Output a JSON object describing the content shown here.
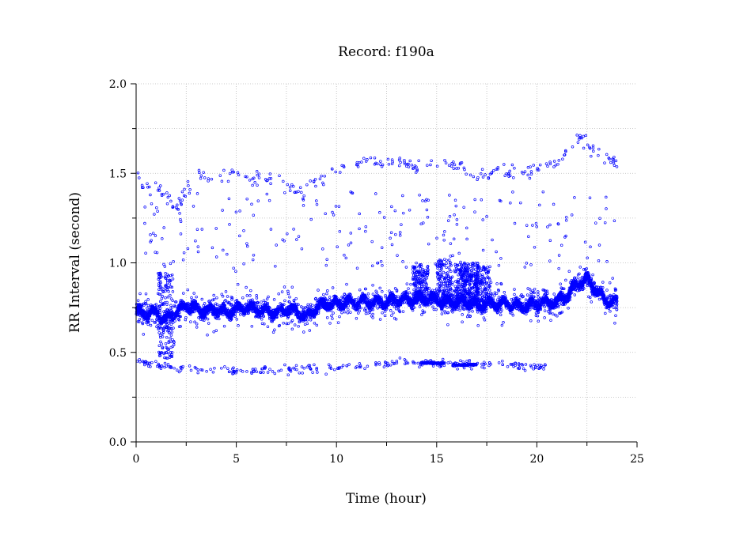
{
  "chart_data": {
    "type": "scatter",
    "title": "Record:  f190a",
    "xlabel": "Time (hour)",
    "ylabel": "RR Interval (second)",
    "xlim": [
      0,
      25
    ],
    "ylim": [
      0,
      2.0
    ],
    "xticks": [
      "0",
      "5",
      "10",
      "15",
      "20",
      "25"
    ],
    "yticks": [
      "0.0",
      "0.5",
      "1.0",
      "1.5",
      "2.0"
    ],
    "grid": true,
    "marker_color": "#0000ff",
    "series": [
      {
        "baseline_trend": [
          [
            0.0,
            0.73
          ],
          [
            0.5,
            0.72
          ],
          [
            1.0,
            0.72
          ],
          [
            1.5,
            0.68
          ],
          [
            2.0,
            0.73
          ],
          [
            2.5,
            0.76
          ],
          [
            3.0,
            0.74
          ],
          [
            3.5,
            0.73
          ],
          [
            4.0,
            0.74
          ],
          [
            4.5,
            0.72
          ],
          [
            5.0,
            0.74
          ],
          [
            5.5,
            0.75
          ],
          [
            6.0,
            0.74
          ],
          [
            6.5,
            0.73
          ],
          [
            7.0,
            0.72
          ],
          [
            7.5,
            0.74
          ],
          [
            8.0,
            0.73
          ],
          [
            8.5,
            0.7
          ],
          [
            9.0,
            0.75
          ],
          [
            9.5,
            0.77
          ],
          [
            10.0,
            0.77
          ],
          [
            10.5,
            0.78
          ],
          [
            11.0,
            0.78
          ],
          [
            11.5,
            0.78
          ],
          [
            12.0,
            0.78
          ],
          [
            12.5,
            0.78
          ],
          [
            13.0,
            0.79
          ],
          [
            13.5,
            0.79
          ],
          [
            14.0,
            0.8
          ],
          [
            14.5,
            0.8
          ],
          [
            15.0,
            0.79
          ],
          [
            15.5,
            0.78
          ],
          [
            16.0,
            0.78
          ],
          [
            16.5,
            0.78
          ],
          [
            17.0,
            0.76
          ],
          [
            17.5,
            0.77
          ],
          [
            18.0,
            0.77
          ],
          [
            18.5,
            0.77
          ],
          [
            19.0,
            0.76
          ],
          [
            19.5,
            0.76
          ],
          [
            20.0,
            0.77
          ],
          [
            20.5,
            0.78
          ],
          [
            21.0,
            0.78
          ],
          [
            21.5,
            0.82
          ],
          [
            22.0,
            0.88
          ],
          [
            22.5,
            0.91
          ],
          [
            23.0,
            0.84
          ],
          [
            23.5,
            0.78
          ],
          [
            24.0,
            0.78
          ]
        ],
        "upper_cluster_trend": [
          [
            0.0,
            1.45
          ],
          [
            1.0,
            1.42
          ],
          [
            2.0,
            1.3
          ],
          [
            3.0,
            1.5
          ],
          [
            4.0,
            1.45
          ],
          [
            5.0,
            1.5
          ],
          [
            6.0,
            1.47
          ],
          [
            7.0,
            1.5
          ],
          [
            8.0,
            1.4
          ],
          [
            9.0,
            1.45
          ],
          [
            10.0,
            1.52
          ],
          [
            11.0,
            1.55
          ],
          [
            12.0,
            1.56
          ],
          [
            13.0,
            1.55
          ],
          [
            14.0,
            1.55
          ],
          [
            15.0,
            1.55
          ],
          [
            16.0,
            1.55
          ],
          [
            17.0,
            1.48
          ],
          [
            18.0,
            1.52
          ],
          [
            19.0,
            1.5
          ],
          [
            20.0,
            1.52
          ],
          [
            21.0,
            1.55
          ],
          [
            22.0,
            1.7
          ],
          [
            23.0,
            1.62
          ],
          [
            24.0,
            1.55
          ]
        ],
        "lower_cluster_trend": [
          [
            0.0,
            0.45
          ],
          [
            1.5,
            0.42
          ],
          [
            3.0,
            0.41
          ],
          [
            5.0,
            0.4
          ],
          [
            7.0,
            0.4
          ],
          [
            9.0,
            0.41
          ],
          [
            11.0,
            0.42
          ],
          [
            13.0,
            0.45
          ],
          [
            14.5,
            0.44
          ],
          [
            16.5,
            0.43
          ],
          [
            18.0,
            0.43
          ],
          [
            20.0,
            0.42
          ]
        ]
      }
    ]
  }
}
